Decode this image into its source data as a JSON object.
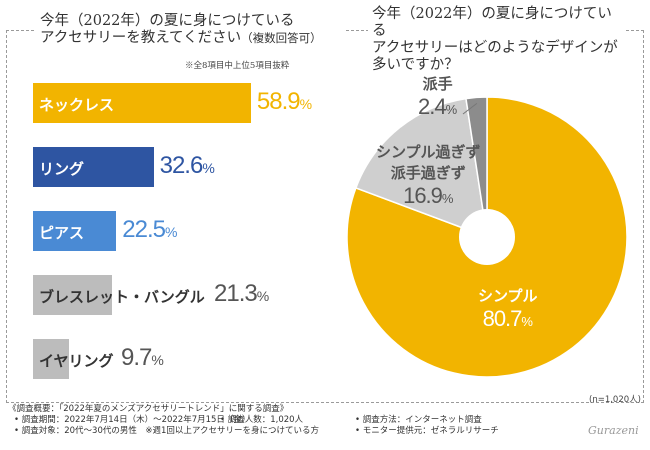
{
  "left_title": {
    "line1": "今年（2022年）の夏に身につけている",
    "line2": "アクセサリーを教えてください",
    "line2_paren": "（複数回答可）",
    "note": "※全8項目中上位5項目抜粋"
  },
  "right_title": {
    "line1": "今年（2022年）の夏に身につけている",
    "line2": "アクセサリーはどのようなデザインが",
    "line3": "多いですか？"
  },
  "n_note": "(n=1,020人)",
  "footer": {
    "heading": "《調査概要：「2022年夏のメンズアクセサリートレンド」に関する調査》",
    "period": "• 調査期間：2022年7月14日（木）～2022年7月15日（金）",
    "count": "• 調査人数：1,020人",
    "method": "• 調査方法：インターネット調査",
    "target": "• 調査対象：20代～30代の男性　※週1回以上アクセサリーを身につけている方",
    "provider": "• モニター提供元：ゼネラルリサーチ"
  },
  "logo_text": "Gurazeni",
  "chart_data": [
    {
      "type": "bar",
      "orientation": "horizontal",
      "categories": [
        "ネックレス",
        "リング",
        "ピアス",
        "ブレスレット・バングル",
        "イヤリング"
      ],
      "values": [
        58.9,
        32.6,
        22.5,
        21.3,
        9.7
      ],
      "display_values": [
        {
          "big": "58.9",
          "pct": "%"
        },
        {
          "big": "32.6",
          "pct": "%"
        },
        {
          "big": "22.5",
          "pct": "%"
        },
        {
          "big": "21.3",
          "pct": "%"
        },
        {
          "big": "9.7",
          "pct": "%"
        }
      ],
      "colors": [
        "#f2b400",
        "#2e55a2",
        "#4a8ad4",
        "#bcbcbc",
        "#bcbcbc"
      ],
      "label_colors": [
        "#ffffff",
        "#ffffff",
        "#ffffff",
        "#333333",
        "#333333"
      ],
      "value_colors": [
        "#f2b400",
        "#2e55a2",
        "#4a8ad4",
        "#555555",
        "#555555"
      ],
      "xlim": [
        0,
        100
      ],
      "unit": "%"
    },
    {
      "type": "pie",
      "categories": [
        "シンプル",
        "シンプル過ぎず派手過ぎず",
        "派手"
      ],
      "label_lines": [
        [
          "シンプル"
        ],
        [
          "シンプル過ぎず",
          "派手過ぎず"
        ],
        [
          "派手"
        ]
      ],
      "values": [
        80.7,
        16.9,
        2.4
      ],
      "display_values": [
        {
          "big": "80.7",
          "pct": "%"
        },
        {
          "big": "16.9",
          "pct": "%"
        },
        {
          "big": "2.4",
          "pct": "%"
        }
      ],
      "colors": [
        "#f2b400",
        "#cfcfcf",
        "#8c8c8c"
      ],
      "label_colors": [
        "#ffffff",
        "#555555",
        "#555555"
      ],
      "unit": "%"
    }
  ]
}
